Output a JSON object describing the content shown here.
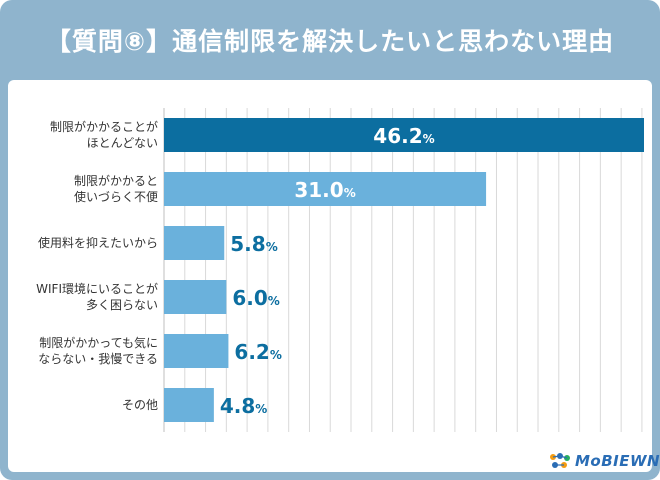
{
  "header": {
    "title": "【質問⑧】通信制限を解決したいと思わない理由"
  },
  "logo": {
    "text": "MoBIEWN"
  },
  "colors": {
    "frame": "#8fb4cd",
    "bar_primary": "#0c6ea0",
    "bar_secondary": "#6ab1dc",
    "label_outside": "#0c6ea0",
    "label_inside": "#ffffff",
    "category_text": "#333333",
    "grid": "#d9d9d9"
  },
  "chart_data": {
    "type": "bar",
    "orientation": "horizontal",
    "title": "【質問⑧】通信制限を解決したいと思わない理由",
    "categories": [
      [
        "制限がかかることが",
        "ほとんどない"
      ],
      [
        "制限がかかると",
        "使いづらく不便"
      ],
      [
        "使用料を抑えたいから"
      ],
      [
        "WIFI環境にいることが",
        "多く困らない"
      ],
      [
        "制限がかかっても気に",
        "ならない・我慢できる"
      ],
      [
        "その他"
      ]
    ],
    "values": [
      46.2,
      31.0,
      5.8,
      6.0,
      6.2,
      4.8
    ],
    "value_labels": [
      "46.2",
      "31.0",
      "5.8",
      "6.0",
      "6.2",
      "4.8"
    ],
    "unit": "%",
    "xlim": [
      0,
      46.2
    ],
    "grid": true,
    "gridline_step": 2,
    "highlight_index": 0
  }
}
